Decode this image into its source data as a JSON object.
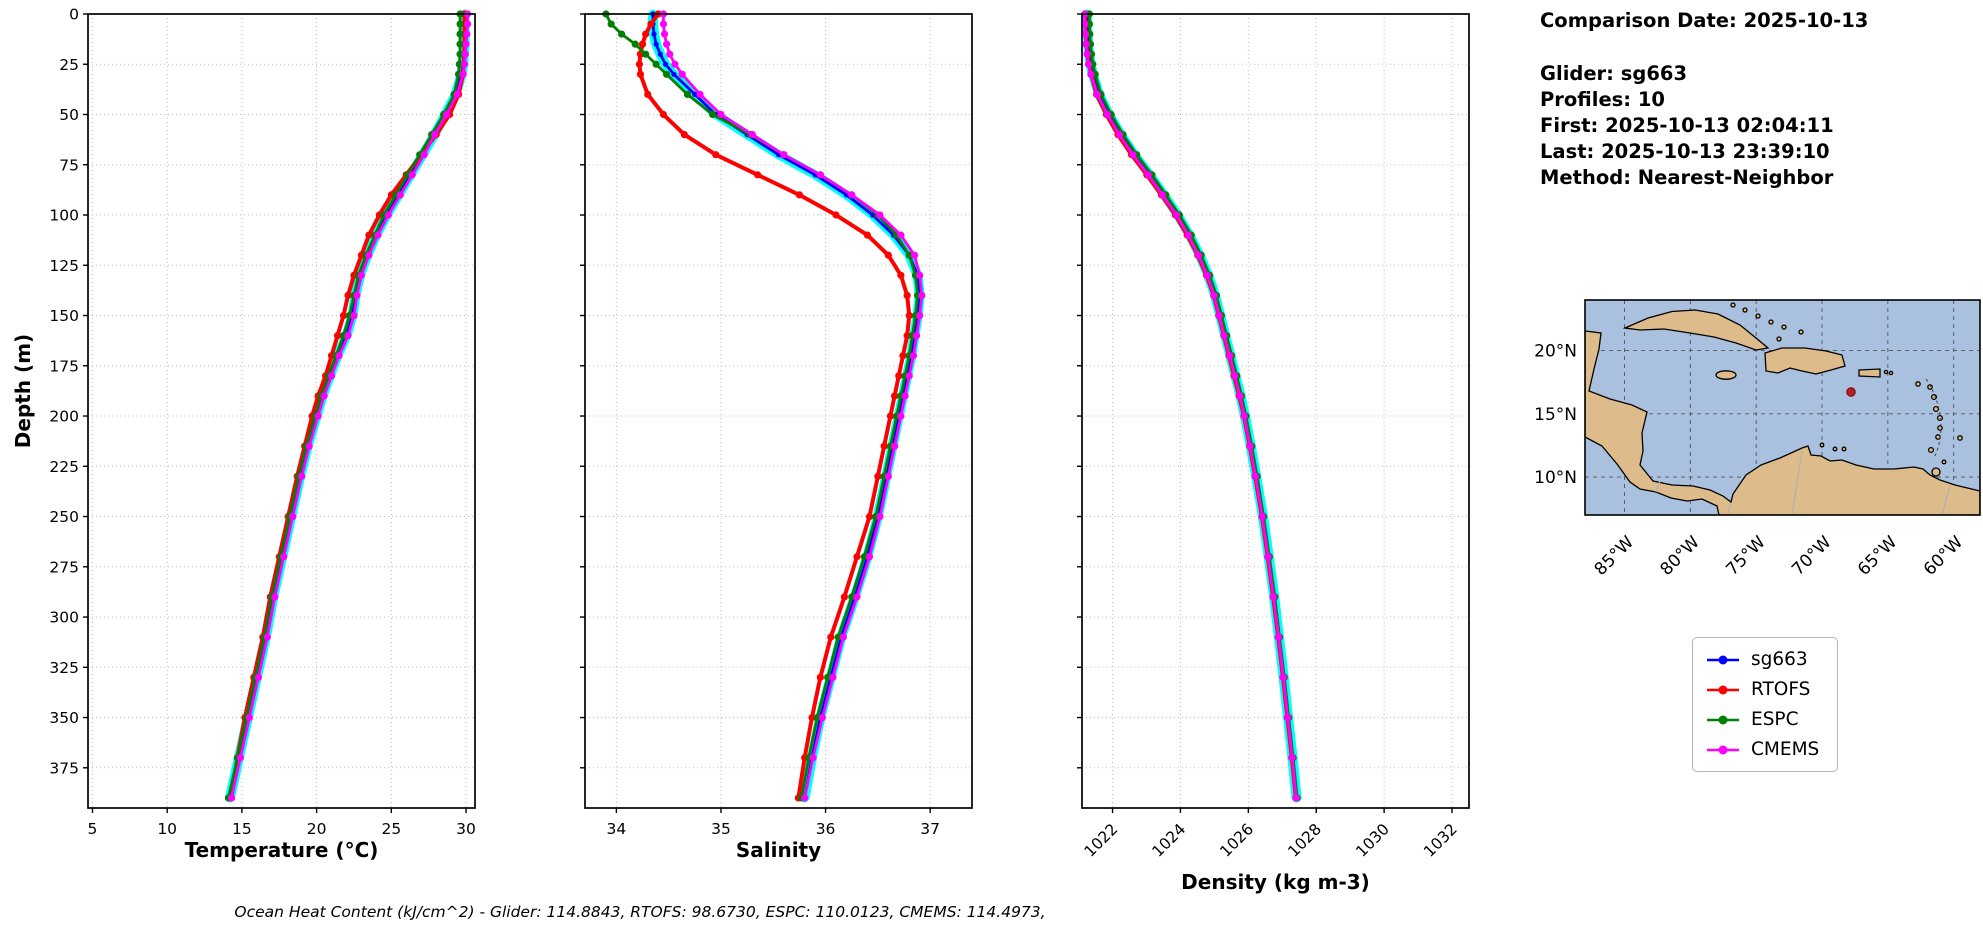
{
  "info": {
    "date_line": "Comparison Date: 2025-10-13",
    "glider": "Glider: sg663",
    "profiles": "Profiles: 10",
    "first": "First: 2025-10-13 02:04:11",
    "last": "Last: 2025-10-13 23:39:10",
    "method": "Method: Nearest-Neighbor"
  },
  "footer_note": "Ocean Heat Content (kJ/cm^2) - Glider: 114.8843,  RTOFS: 98.6730,  ESPC: 110.0123,  CMEMS: 114.4973,",
  "legend": {
    "items": [
      {
        "label": "sg663",
        "color": "#0000ff"
      },
      {
        "label": "RTOFS",
        "color": "#ff0000"
      },
      {
        "label": "ESPC",
        "color": "#008000"
      },
      {
        "label": "CMEMS",
        "color": "#ff00ff"
      }
    ]
  },
  "map": {
    "ocean_color": "#a9c1de",
    "land_color": "#ddbb8a",
    "marker_color": "#b22222",
    "lat_ticks": [
      {
        "label": "20°N",
        "value": 20
      },
      {
        "label": "15°N",
        "value": 15
      },
      {
        "label": "10°N",
        "value": 10
      }
    ],
    "lon_ticks": [
      {
        "label": "85°W",
        "value": -85
      },
      {
        "label": "80°W",
        "value": -80
      },
      {
        "label": "75°W",
        "value": -75
      },
      {
        "label": "70°W",
        "value": -70
      },
      {
        "label": "65°W",
        "value": -65
      },
      {
        "label": "60°W",
        "value": -60
      }
    ]
  },
  "chart_data": [
    {
      "type": "line",
      "xlabel": "Temperature (°C)",
      "ylabel": "Depth (m)",
      "xlim": [
        4.7,
        30.6
      ],
      "ylim": [
        0,
        395
      ],
      "y_inverted": true,
      "grid": true,
      "xticks": [
        5,
        10,
        15,
        20,
        25,
        30
      ],
      "yticks": [
        0,
        25,
        50,
        75,
        100,
        125,
        150,
        175,
        200,
        225,
        250,
        275,
        300,
        325,
        350,
        375
      ],
      "envelope_color": "#00ffff",
      "depths_m": [
        0,
        5,
        10,
        15,
        20,
        25,
        30,
        40,
        50,
        60,
        70,
        80,
        90,
        100,
        110,
        120,
        130,
        140,
        150,
        160,
        170,
        180,
        190,
        200,
        215,
        230,
        250,
        270,
        290,
        310,
        330,
        350,
        370,
        390
      ],
      "series": [
        {
          "name": "sg663",
          "color": "#0000ff",
          "values": [
            29.9,
            29.9,
            29.9,
            29.9,
            29.85,
            29.8,
            29.7,
            29.3,
            28.6,
            27.9,
            27.1,
            26.3,
            25.5,
            24.7,
            24.0,
            23.4,
            22.9,
            22.6,
            22.4,
            22.0,
            21.4,
            20.9,
            20.4,
            20.0,
            19.4,
            18.9,
            18.3,
            17.7,
            17.1,
            16.6,
            16.0,
            15.4,
            14.8,
            14.2
          ]
        },
        {
          "name": "RTOFS",
          "color": "#ff0000",
          "values": [
            29.9,
            29.9,
            29.9,
            29.9,
            29.9,
            29.85,
            29.8,
            29.5,
            28.9,
            28.0,
            27.0,
            26.0,
            25.0,
            24.2,
            23.5,
            23.0,
            22.5,
            22.1,
            21.8,
            21.4,
            21.0,
            20.6,
            20.1,
            19.7,
            19.2,
            18.7,
            18.1,
            17.5,
            16.9,
            16.4,
            15.8,
            15.2,
            14.7,
            14.3
          ]
        },
        {
          "name": "ESPC",
          "color": "#008000",
          "values": [
            29.6,
            29.6,
            29.6,
            29.6,
            29.6,
            29.55,
            29.5,
            29.2,
            28.5,
            27.7,
            26.9,
            26.1,
            25.3,
            24.5,
            23.9,
            23.3,
            22.8,
            22.5,
            22.2,
            21.8,
            21.3,
            20.8,
            20.3,
            19.9,
            19.3,
            18.8,
            18.2,
            17.6,
            17.0,
            16.5,
            15.9,
            15.3,
            14.7,
            14.1
          ]
        },
        {
          "name": "CMEMS",
          "color": "#ff00ff",
          "values": [
            30.1,
            30.1,
            30.05,
            30.0,
            29.95,
            29.9,
            29.8,
            29.4,
            28.7,
            27.9,
            27.2,
            26.4,
            25.6,
            24.8,
            24.1,
            23.5,
            23.0,
            22.7,
            22.5,
            22.1,
            21.5,
            21.0,
            20.5,
            20.1,
            19.5,
            19.0,
            18.4,
            17.8,
            17.2,
            16.7,
            16.1,
            15.5,
            14.9,
            14.3
          ]
        }
      ]
    },
    {
      "type": "line",
      "xlabel": "Salinity",
      "xlim": [
        33.7,
        37.4
      ],
      "ylim": [
        0,
        395
      ],
      "y_inverted": true,
      "grid": true,
      "xticks": [
        34,
        35,
        36,
        37
      ],
      "yticks": [
        0,
        25,
        50,
        75,
        100,
        125,
        150,
        175,
        200,
        225,
        250,
        275,
        300,
        325,
        350,
        375
      ],
      "envelope_color": "#00ffff",
      "depths_m": [
        0,
        5,
        10,
        15,
        20,
        25,
        30,
        40,
        50,
        60,
        70,
        80,
        90,
        100,
        110,
        120,
        130,
        140,
        150,
        160,
        170,
        180,
        190,
        200,
        215,
        230,
        250,
        270,
        290,
        310,
        330,
        350,
        370,
        390
      ],
      "series": [
        {
          "name": "sg663",
          "color": "#0000ff",
          "values": [
            34.35,
            34.35,
            34.36,
            34.38,
            34.42,
            34.47,
            34.55,
            34.75,
            34.95,
            35.25,
            35.55,
            35.9,
            36.2,
            36.45,
            36.65,
            36.8,
            36.88,
            36.9,
            36.88,
            36.85,
            36.82,
            36.78,
            36.74,
            36.7,
            36.64,
            36.58,
            36.5,
            36.4,
            36.28,
            36.15,
            36.05,
            35.95,
            35.87,
            35.8
          ]
        },
        {
          "name": "RTOFS",
          "color": "#ff0000",
          "values": [
            34.4,
            34.33,
            34.28,
            34.25,
            34.23,
            34.22,
            34.23,
            34.3,
            34.45,
            34.65,
            34.95,
            35.35,
            35.75,
            36.1,
            36.4,
            36.6,
            36.72,
            36.78,
            36.8,
            36.78,
            36.74,
            36.7,
            36.66,
            36.62,
            36.56,
            36.5,
            36.42,
            36.3,
            36.18,
            36.05,
            35.95,
            35.87,
            35.8,
            35.74
          ]
        },
        {
          "name": "ESPC",
          "color": "#008000",
          "values": [
            33.9,
            33.95,
            34.05,
            34.18,
            34.28,
            34.38,
            34.48,
            34.68,
            34.92,
            35.28,
            35.6,
            35.95,
            36.25,
            36.5,
            36.68,
            36.8,
            36.86,
            36.88,
            36.86,
            36.83,
            36.8,
            36.76,
            36.72,
            36.68,
            36.62,
            36.56,
            36.48,
            36.37,
            36.25,
            36.12,
            36.02,
            35.92,
            35.84,
            35.77
          ]
        },
        {
          "name": "CMEMS",
          "color": "#ff00ff",
          "values": [
            34.45,
            34.45,
            34.46,
            34.48,
            34.51,
            34.56,
            34.63,
            34.8,
            35.0,
            35.3,
            35.6,
            35.95,
            36.25,
            36.52,
            36.72,
            36.85,
            36.9,
            36.92,
            36.9,
            36.87,
            36.84,
            36.8,
            36.76,
            36.72,
            36.66,
            36.6,
            36.52,
            36.42,
            36.3,
            36.17,
            36.07,
            35.97,
            35.88,
            35.8
          ]
        }
      ]
    },
    {
      "type": "line",
      "xlabel": "Density (kg m-3)",
      "xlim": [
        1021.1,
        1032.5
      ],
      "ylim": [
        0,
        395
      ],
      "y_inverted": true,
      "grid": true,
      "xticks": [
        1022,
        1024,
        1026,
        1028,
        1030,
        1032
      ],
      "yticks": [
        0,
        25,
        50,
        75,
        100,
        125,
        150,
        175,
        200,
        225,
        250,
        275,
        300,
        325,
        350,
        375
      ],
      "envelope_color": "#00ffff",
      "depths_m": [
        0,
        5,
        10,
        15,
        20,
        25,
        30,
        40,
        50,
        60,
        70,
        80,
        90,
        100,
        110,
        120,
        130,
        140,
        150,
        160,
        170,
        180,
        190,
        200,
        215,
        230,
        250,
        270,
        290,
        310,
        330,
        350,
        370,
        390
      ],
      "series": [
        {
          "name": "sg663",
          "color": "#0000ff",
          "values": [
            1021.25,
            1021.25,
            1021.26,
            1021.28,
            1021.31,
            1021.35,
            1021.42,
            1021.6,
            1021.9,
            1022.25,
            1022.65,
            1023.1,
            1023.52,
            1023.92,
            1024.27,
            1024.57,
            1024.82,
            1025.02,
            1025.17,
            1025.32,
            1025.47,
            1025.62,
            1025.77,
            1025.9,
            1026.07,
            1026.23,
            1026.43,
            1026.6,
            1026.76,
            1026.9,
            1027.04,
            1027.17,
            1027.3,
            1027.42
          ]
        },
        {
          "name": "RTOFS",
          "color": "#ff0000",
          "values": [
            1021.2,
            1021.2,
            1021.21,
            1021.23,
            1021.26,
            1021.3,
            1021.37,
            1021.53,
            1021.82,
            1022.16,
            1022.56,
            1023.01,
            1023.44,
            1023.85,
            1024.2,
            1024.51,
            1024.77,
            1024.98,
            1025.13,
            1025.28,
            1025.43,
            1025.58,
            1025.73,
            1025.87,
            1026.04,
            1026.2,
            1026.4,
            1026.57,
            1026.73,
            1026.88,
            1027.02,
            1027.15,
            1027.28,
            1027.4
          ]
        },
        {
          "name": "ESPC",
          "color": "#008000",
          "values": [
            1021.32,
            1021.32,
            1021.33,
            1021.35,
            1021.38,
            1021.42,
            1021.49,
            1021.66,
            1021.96,
            1022.31,
            1022.71,
            1023.16,
            1023.57,
            1023.97,
            1024.32,
            1024.61,
            1024.86,
            1025.06,
            1025.21,
            1025.36,
            1025.51,
            1025.66,
            1025.8,
            1025.93,
            1026.1,
            1026.26,
            1026.45,
            1026.62,
            1026.78,
            1026.92,
            1027.06,
            1027.19,
            1027.32,
            1027.44
          ]
        },
        {
          "name": "CMEMS",
          "color": "#ff00ff",
          "values": [
            1021.18,
            1021.18,
            1021.2,
            1021.22,
            1021.25,
            1021.29,
            1021.36,
            1021.55,
            1021.85,
            1022.2,
            1022.6,
            1023.05,
            1023.47,
            1023.88,
            1024.23,
            1024.53,
            1024.79,
            1024.99,
            1025.14,
            1025.29,
            1025.45,
            1025.6,
            1025.75,
            1025.88,
            1026.05,
            1026.21,
            1026.41,
            1026.58,
            1026.74,
            1026.89,
            1027.03,
            1027.16,
            1027.29,
            1027.41
          ]
        }
      ]
    }
  ]
}
